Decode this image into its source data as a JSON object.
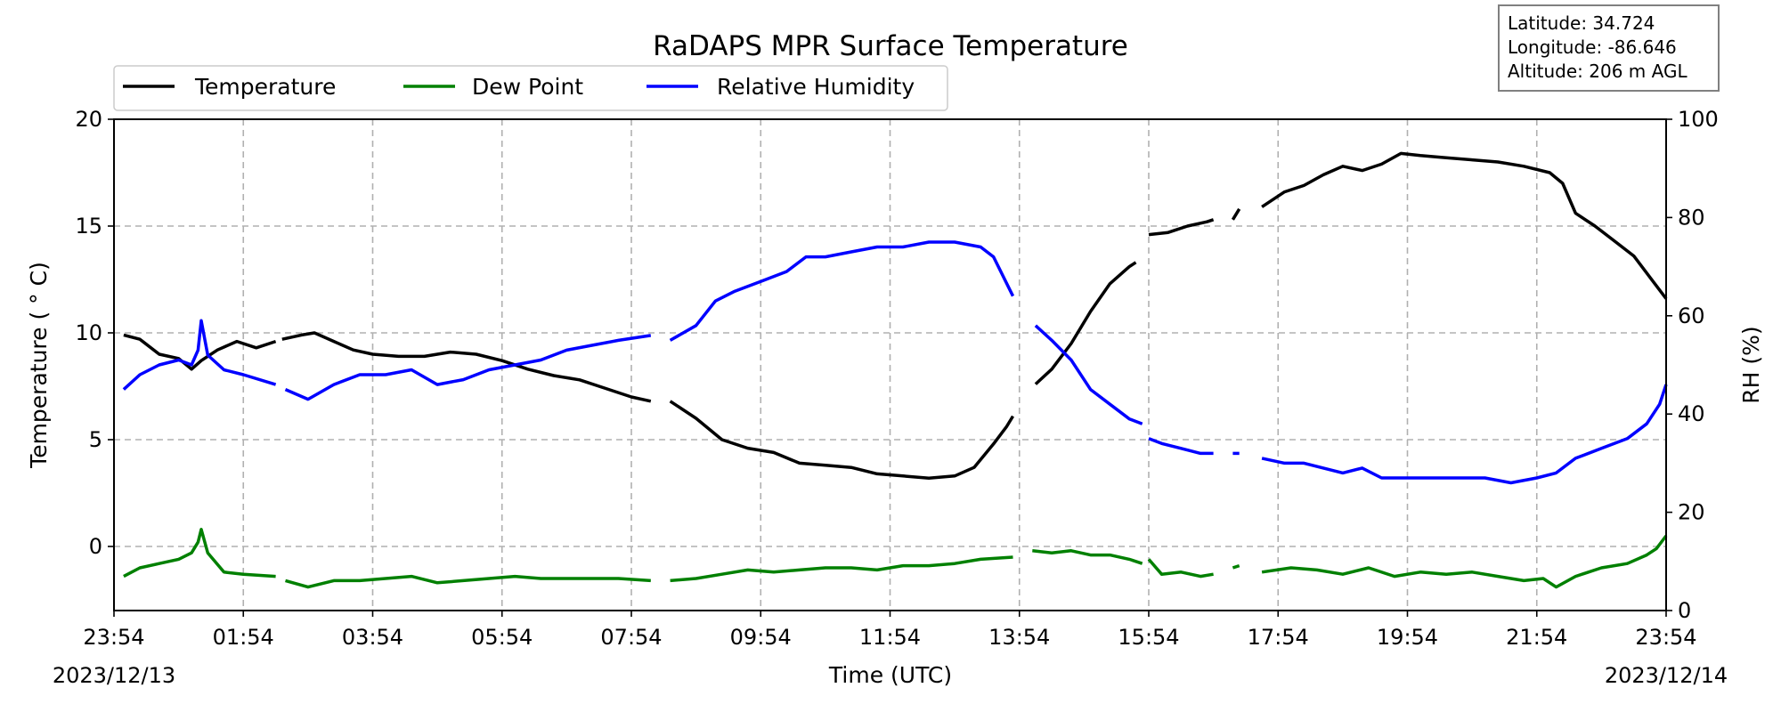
{
  "chart_data": {
    "type": "line",
    "title": "RaDAPS MPR Surface Temperature",
    "xlabel": "Time (UTC)",
    "ylabel": "Temperature ( ° C)",
    "ylabel_right": "RH (%)",
    "x_unit": "hours since 23:54 UTC 2023/12/13",
    "xlim": [
      0,
      24
    ],
    "ylim": [
      -3,
      20
    ],
    "ylim_right": [
      0,
      100
    ],
    "x_ticks": [
      {
        "x": 0,
        "label": "23:54"
      },
      {
        "x": 2,
        "label": "01:54"
      },
      {
        "x": 4,
        "label": "03:54"
      },
      {
        "x": 6,
        "label": "05:54"
      },
      {
        "x": 8,
        "label": "07:54"
      },
      {
        "x": 10,
        "label": "09:54"
      },
      {
        "x": 12,
        "label": "11:54"
      },
      {
        "x": 14,
        "label": "13:54"
      },
      {
        "x": 16,
        "label": "15:54"
      },
      {
        "x": 18,
        "label": "17:54"
      },
      {
        "x": 20,
        "label": "19:54"
      },
      {
        "x": 22,
        "label": "21:54"
      },
      {
        "x": 24,
        "label": "23:54"
      }
    ],
    "y_ticks": [
      0,
      5,
      10,
      15,
      20
    ],
    "y_ticks_right": [
      0,
      20,
      40,
      60,
      80,
      100
    ],
    "date_left": "2023/12/13",
    "date_right": "2023/12/14",
    "grid": true,
    "legend_position": "top-left",
    "info_box": {
      "latitude": "Latitude: 34.724",
      "longitude": "Longitude: -86.646",
      "altitude": "Altitude: 206 m AGL"
    },
    "series": [
      {
        "name": "Temperature",
        "axis": "left",
        "color": "#000000",
        "segments": [
          [
            [
              0.15,
              9.9
            ],
            [
              0.4,
              9.7
            ],
            [
              0.7,
              9.0
            ],
            [
              1.0,
              8.8
            ],
            [
              1.2,
              8.3
            ],
            [
              1.35,
              8.7
            ],
            [
              1.6,
              9.2
            ],
            [
              1.9,
              9.6
            ],
            [
              2.2,
              9.3
            ],
            [
              2.5,
              9.6
            ]
          ],
          [
            [
              2.6,
              9.7
            ],
            [
              2.9,
              9.9
            ],
            [
              3.1,
              10.0
            ],
            [
              3.4,
              9.6
            ],
            [
              3.7,
              9.2
            ],
            [
              4.0,
              9.0
            ],
            [
              4.4,
              8.9
            ],
            [
              4.8,
              8.9
            ],
            [
              5.2,
              9.1
            ],
            [
              5.6,
              9.0
            ],
            [
              6.0,
              8.7
            ],
            [
              6.4,
              8.3
            ],
            [
              6.8,
              8.0
            ],
            [
              7.2,
              7.8
            ],
            [
              7.6,
              7.4
            ],
            [
              8.0,
              7.0
            ],
            [
              8.3,
              6.8
            ]
          ],
          [
            [
              8.6,
              6.8
            ],
            [
              9.0,
              6.0
            ],
            [
              9.4,
              5.0
            ],
            [
              9.8,
              4.6
            ],
            [
              10.2,
              4.4
            ],
            [
              10.6,
              3.9
            ],
            [
              11.0,
              3.8
            ],
            [
              11.4,
              3.7
            ],
            [
              11.8,
              3.4
            ],
            [
              12.2,
              3.3
            ],
            [
              12.6,
              3.2
            ],
            [
              13.0,
              3.3
            ],
            [
              13.3,
              3.7
            ],
            [
              13.6,
              4.8
            ],
            [
              13.8,
              5.6
            ],
            [
              13.9,
              6.1
            ]
          ],
          [
            [
              14.25,
              7.6
            ],
            [
              14.5,
              8.3
            ],
            [
              14.8,
              9.5
            ],
            [
              15.1,
              11.0
            ],
            [
              15.4,
              12.3
            ],
            [
              15.7,
              13.1
            ],
            [
              15.8,
              13.3
            ]
          ],
          [
            [
              16.0,
              14.6
            ],
            [
              16.3,
              14.7
            ],
            [
              16.6,
              15.0
            ],
            [
              16.9,
              15.2
            ],
            [
              17.0,
              15.3
            ]
          ],
          [
            [
              17.3,
              15.3
            ],
            [
              17.4,
              15.8
            ]
          ],
          [
            [
              17.75,
              15.9
            ],
            [
              18.1,
              16.6
            ],
            [
              18.4,
              16.9
            ],
            [
              18.7,
              17.4
            ],
            [
              19.0,
              17.8
            ],
            [
              19.3,
              17.6
            ],
            [
              19.6,
              17.9
            ],
            [
              19.9,
              18.4
            ],
            [
              20.2,
              18.3
            ],
            [
              20.6,
              18.2
            ],
            [
              21.0,
              18.1
            ],
            [
              21.4,
              18.0
            ],
            [
              21.8,
              17.8
            ],
            [
              22.2,
              17.5
            ],
            [
              22.4,
              17.0
            ],
            [
              22.6,
              15.6
            ],
            [
              22.9,
              15.0
            ],
            [
              23.2,
              14.3
            ],
            [
              23.5,
              13.6
            ],
            [
              23.8,
              12.4
            ],
            [
              24.0,
              11.6
            ]
          ]
        ]
      },
      {
        "name": "Dew Point",
        "axis": "left",
        "color": "#008000",
        "segments": [
          [
            [
              0.15,
              -1.4
            ],
            [
              0.4,
              -1.0
            ],
            [
              0.7,
              -0.8
            ],
            [
              1.0,
              -0.6
            ],
            [
              1.2,
              -0.3
            ],
            [
              1.3,
              0.2
            ],
            [
              1.35,
              0.8
            ],
            [
              1.45,
              -0.3
            ],
            [
              1.7,
              -1.2
            ],
            [
              2.0,
              -1.3
            ],
            [
              2.5,
              -1.4
            ]
          ],
          [
            [
              2.65,
              -1.6
            ],
            [
              3.0,
              -1.9
            ],
            [
              3.4,
              -1.6
            ],
            [
              3.8,
              -1.6
            ],
            [
              4.2,
              -1.5
            ],
            [
              4.6,
              -1.4
            ],
            [
              5.0,
              -1.7
            ],
            [
              5.4,
              -1.6
            ],
            [
              5.8,
              -1.5
            ],
            [
              6.2,
              -1.4
            ],
            [
              6.6,
              -1.5
            ],
            [
              7.0,
              -1.5
            ],
            [
              7.4,
              -1.5
            ],
            [
              7.8,
              -1.5
            ],
            [
              8.3,
              -1.6
            ]
          ],
          [
            [
              8.6,
              -1.6
            ],
            [
              9.0,
              -1.5
            ],
            [
              9.4,
              -1.3
            ],
            [
              9.8,
              -1.1
            ],
            [
              10.2,
              -1.2
            ],
            [
              10.6,
              -1.1
            ],
            [
              11.0,
              -1.0
            ],
            [
              11.4,
              -1.0
            ],
            [
              11.8,
              -1.1
            ],
            [
              12.2,
              -0.9
            ],
            [
              12.6,
              -0.9
            ],
            [
              13.0,
              -0.8
            ],
            [
              13.4,
              -0.6
            ],
            [
              13.9,
              -0.5
            ]
          ],
          [
            [
              14.2,
              -0.2
            ],
            [
              14.5,
              -0.3
            ],
            [
              14.8,
              -0.2
            ],
            [
              15.1,
              -0.4
            ],
            [
              15.4,
              -0.4
            ],
            [
              15.7,
              -0.6
            ],
            [
              15.9,
              -0.8
            ]
          ],
          [
            [
              16.0,
              -0.6
            ],
            [
              16.2,
              -1.3
            ],
            [
              16.5,
              -1.2
            ],
            [
              16.8,
              -1.4
            ],
            [
              17.0,
              -1.3
            ]
          ],
          [
            [
              17.3,
              -1.0
            ],
            [
              17.4,
              -0.9
            ]
          ],
          [
            [
              17.75,
              -1.2
            ],
            [
              18.2,
              -1.0
            ],
            [
              18.6,
              -1.1
            ],
            [
              19.0,
              -1.3
            ],
            [
              19.4,
              -1.0
            ],
            [
              19.8,
              -1.4
            ],
            [
              20.2,
              -1.2
            ],
            [
              20.6,
              -1.3
            ],
            [
              21.0,
              -1.2
            ],
            [
              21.4,
              -1.4
            ],
            [
              21.8,
              -1.6
            ],
            [
              22.1,
              -1.5
            ],
            [
              22.3,
              -1.9
            ],
            [
              22.6,
              -1.4
            ],
            [
              23.0,
              -1.0
            ],
            [
              23.4,
              -0.8
            ],
            [
              23.7,
              -0.4
            ],
            [
              23.85,
              -0.1
            ],
            [
              24.0,
              0.5
            ]
          ]
        ]
      },
      {
        "name": "Relative Humidity",
        "axis": "right",
        "color": "#0000ff",
        "segments": [
          [
            [
              0.15,
              45
            ],
            [
              0.4,
              48
            ],
            [
              0.7,
              50
            ],
            [
              1.0,
              51
            ],
            [
              1.2,
              50
            ],
            [
              1.3,
              53
            ],
            [
              1.35,
              59
            ],
            [
              1.45,
              52
            ],
            [
              1.7,
              49
            ],
            [
              2.0,
              48
            ],
            [
              2.5,
              46
            ]
          ],
          [
            [
              2.65,
              45
            ],
            [
              3.0,
              43
            ],
            [
              3.4,
              46
            ],
            [
              3.8,
              48
            ],
            [
              4.2,
              48
            ],
            [
              4.6,
              49
            ],
            [
              5.0,
              46
            ],
            [
              5.4,
              47
            ],
            [
              5.8,
              49
            ],
            [
              6.2,
              50
            ],
            [
              6.6,
              51
            ],
            [
              7.0,
              53
            ],
            [
              7.4,
              54
            ],
            [
              7.8,
              55
            ],
            [
              8.3,
              56
            ]
          ],
          [
            [
              8.6,
              55
            ],
            [
              9.0,
              58
            ],
            [
              9.3,
              63
            ],
            [
              9.6,
              65
            ],
            [
              10.0,
              67
            ],
            [
              10.4,
              69
            ],
            [
              10.7,
              72
            ],
            [
              11.0,
              72
            ],
            [
              11.4,
              73
            ],
            [
              11.8,
              74
            ],
            [
              12.2,
              74
            ],
            [
              12.6,
              75
            ],
            [
              13.0,
              75
            ],
            [
              13.4,
              74
            ],
            [
              13.6,
              72
            ],
            [
              13.9,
              64
            ]
          ],
          [
            [
              14.25,
              58
            ],
            [
              14.5,
              55
            ],
            [
              14.8,
              51
            ],
            [
              15.1,
              45
            ],
            [
              15.4,
              42
            ],
            [
              15.7,
              39
            ],
            [
              15.9,
              38
            ]
          ],
          [
            [
              16.0,
              35
            ],
            [
              16.2,
              34
            ],
            [
              16.5,
              33
            ],
            [
              16.8,
              32
            ],
            [
              17.0,
              32
            ]
          ],
          [
            [
              17.3,
              32
            ],
            [
              17.4,
              32
            ]
          ],
          [
            [
              17.75,
              31
            ],
            [
              18.1,
              30
            ],
            [
              18.4,
              30
            ],
            [
              18.7,
              29
            ],
            [
              19.0,
              28
            ],
            [
              19.3,
              29
            ],
            [
              19.6,
              27
            ],
            [
              20.0,
              27
            ],
            [
              20.4,
              27
            ],
            [
              20.8,
              27
            ],
            [
              21.2,
              27
            ],
            [
              21.6,
              26
            ],
            [
              22.0,
              27
            ],
            [
              22.3,
              28
            ],
            [
              22.6,
              31
            ],
            [
              23.0,
              33
            ],
            [
              23.4,
              35
            ],
            [
              23.7,
              38
            ],
            [
              23.9,
              42
            ],
            [
              24.0,
              46
            ]
          ]
        ]
      }
    ]
  }
}
